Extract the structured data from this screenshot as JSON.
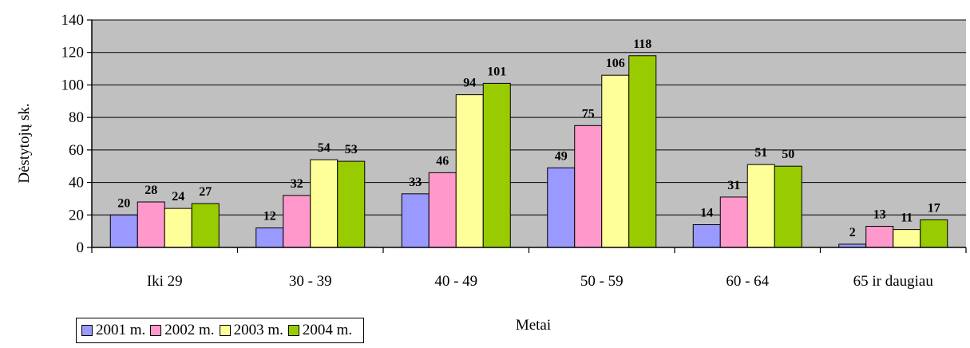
{
  "chart_data": {
    "type": "bar",
    "title": "",
    "xlabel": "Metai",
    "ylabel": "Dėstytojų sk.",
    "ylim": [
      0,
      140
    ],
    "yticks": [
      0,
      20,
      40,
      60,
      80,
      100,
      120,
      140
    ],
    "grid": true,
    "plot_background": "#C0C0C0",
    "legend_position": "bottom-left",
    "categories": [
      "Iki 29",
      "30 - 39",
      "40 - 49",
      "50 - 59",
      "60 - 64",
      "65 ir daugiau"
    ],
    "series": [
      {
        "name": "2001 m.",
        "color": "#9999FF",
        "values": [
          20,
          12,
          33,
          49,
          14,
          2
        ]
      },
      {
        "name": "2002 m.",
        "color": "#FF99CC",
        "values": [
          28,
          32,
          46,
          75,
          31,
          13
        ]
      },
      {
        "name": "2003 m.",
        "color": "#FFFF99",
        "values": [
          24,
          54,
          94,
          106,
          51,
          11
        ]
      },
      {
        "name": "2004 m.",
        "color": "#99CC00",
        "values": [
          27,
          53,
          101,
          118,
          50,
          17
        ]
      }
    ]
  }
}
